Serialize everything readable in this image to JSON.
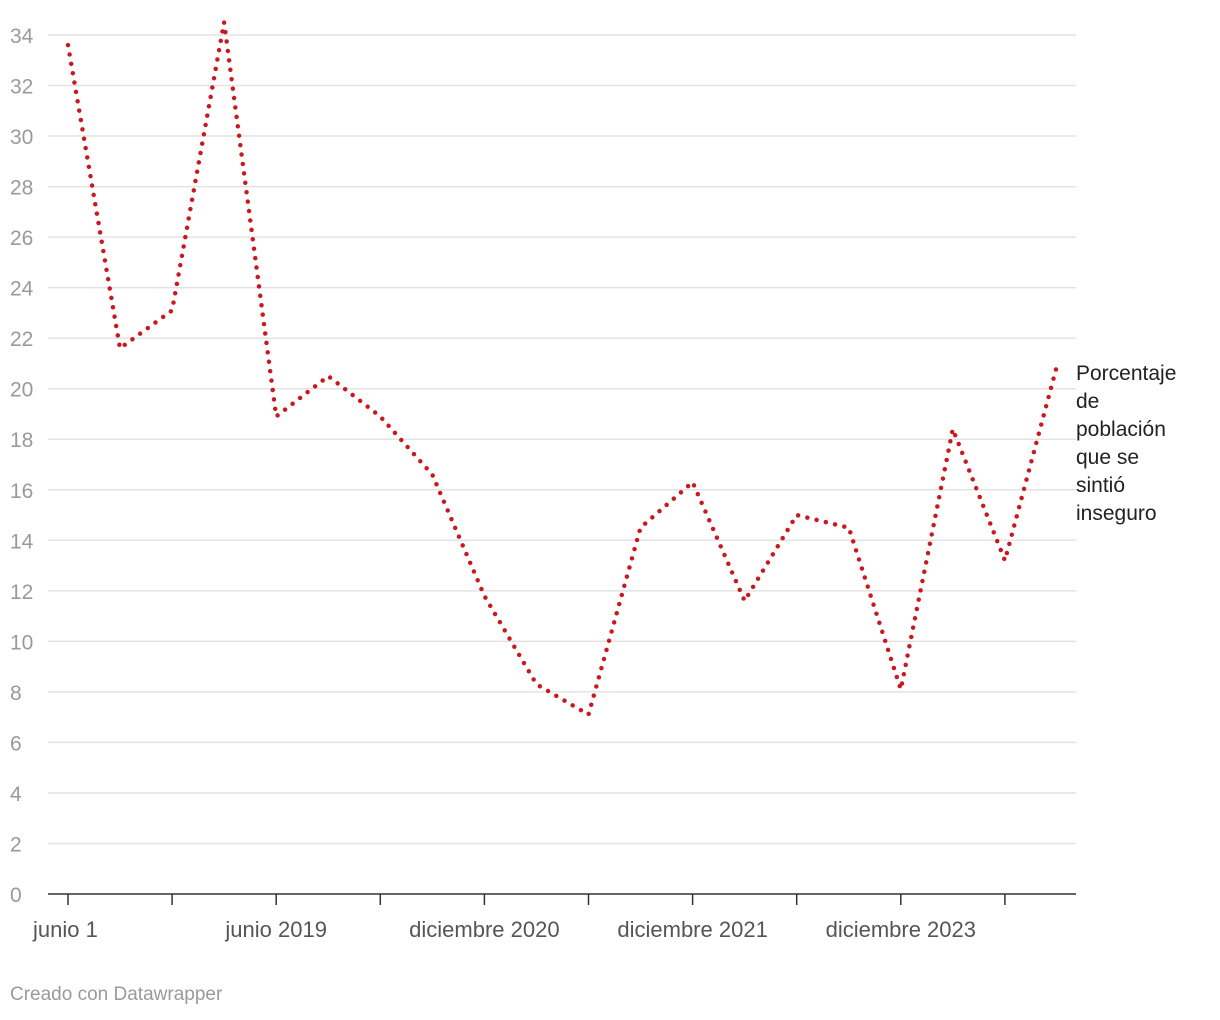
{
  "chart_data": {
    "type": "line",
    "x": [
      "junio 1",
      "",
      "",
      "",
      "junio 2019",
      "",
      "",
      "",
      "diciembre 2020",
      "",
      "",
      "",
      "diciembre 2021",
      "",
      "",
      "",
      "diciembre 2023",
      "",
      "",
      ""
    ],
    "series": [
      {
        "name": "Porcentaje de población que se sintió inseguro",
        "values": [
          33.6,
          21.6,
          23.1,
          34.5,
          18.9,
          20.5,
          18.9,
          16.6,
          11.8,
          8.3,
          7.1,
          14.5,
          16.3,
          11.6,
          15.0,
          14.5,
          8.1,
          18.4,
          13.2,
          20.9
        ],
        "color": "#c8191e"
      }
    ],
    "ylim": [
      0,
      34
    ],
    "yticks": [
      "0",
      "2",
      "4",
      "6",
      "8",
      "10",
      "12",
      "14",
      "16",
      "18",
      "20",
      "22",
      "24",
      "26",
      "28",
      "30",
      "32",
      "34"
    ],
    "xtick_labels": [
      "junio 1",
      "junio 2019",
      "diciembre 2020",
      "diciembre 2021",
      "diciembre 2023"
    ],
    "xtick_marks": 10,
    "grid": true,
    "line_style": "dotted",
    "series_label_lines": [
      "Porcentaje",
      "de",
      "población",
      "que se",
      "sintió",
      "inseguro"
    ],
    "credit": "Creado con Datawrapper"
  }
}
